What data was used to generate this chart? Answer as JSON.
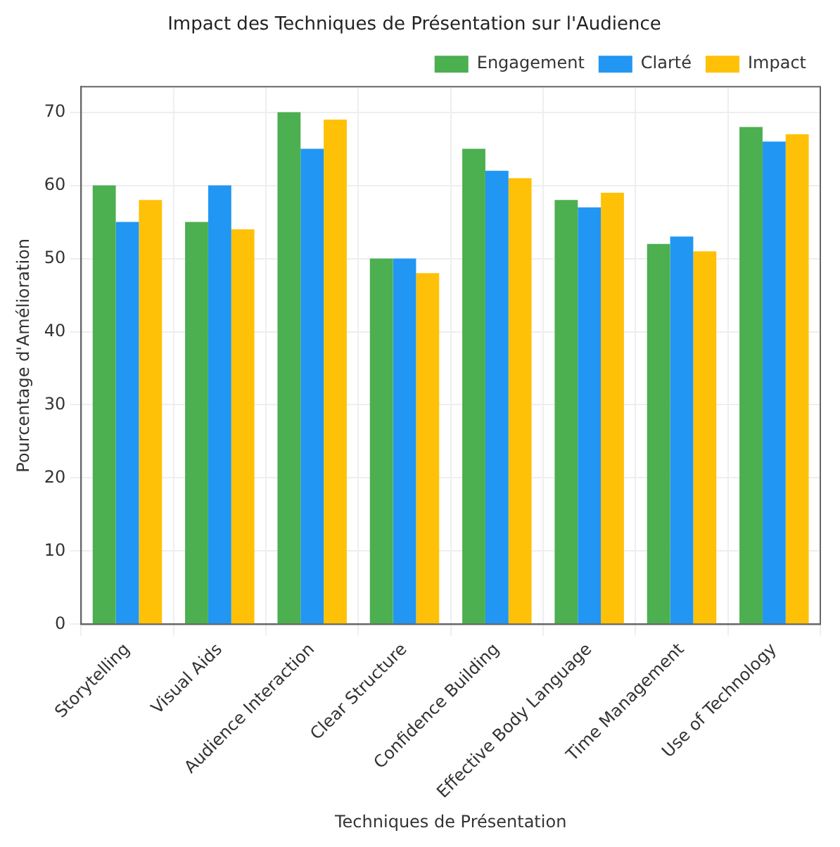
{
  "chart_data": {
    "type": "bar",
    "title": "Impact des Techniques de Présentation sur l'Audience",
    "xlabel": "Techniques de Présentation",
    "ylabel": "Pourcentage d'Amélioration",
    "categories": [
      "Storytelling",
      "Visual Aids",
      "Audience Interaction",
      "Clear Structure",
      "Confidence Building",
      "Effective Body Language",
      "Time Management",
      "Use of Technology"
    ],
    "series": [
      {
        "name": "Engagement",
        "color": "#4caf50",
        "values": [
          60,
          55,
          70,
          50,
          65,
          58,
          52,
          68
        ]
      },
      {
        "name": "Clarté",
        "color": "#2196f3",
        "values": [
          55,
          60,
          65,
          50,
          62,
          57,
          53,
          66
        ]
      },
      {
        "name": "Impact",
        "color": "#ffc107",
        "values": [
          58,
          54,
          69,
          48,
          61,
          59,
          51,
          67
        ]
      }
    ],
    "ylim": [
      0,
      73.5
    ],
    "yticks": [
      0,
      10,
      20,
      30,
      40,
      50,
      60,
      70
    ],
    "grid": true,
    "legend": "top right"
  }
}
